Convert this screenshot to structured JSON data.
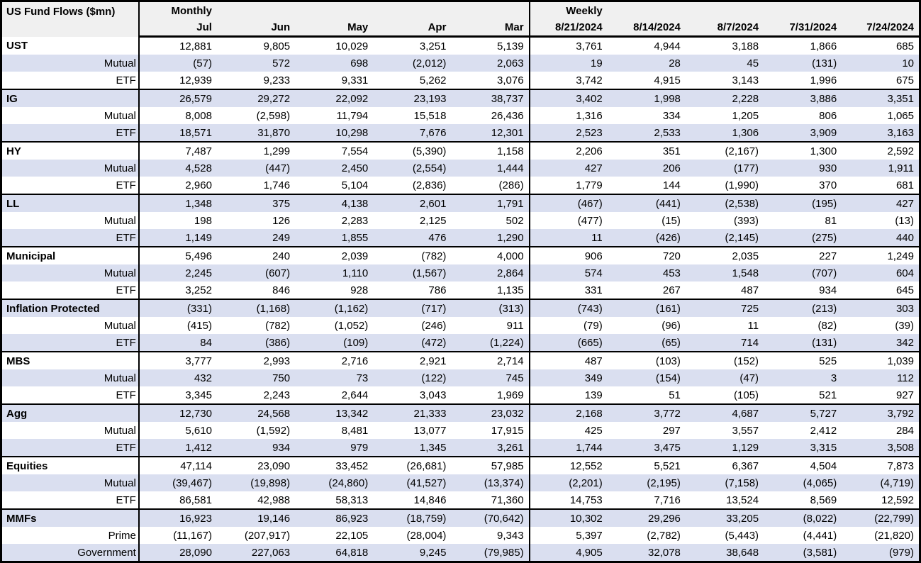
{
  "table": {
    "title": "US Fund Flows ($mn)",
    "monthly_label": "Monthly",
    "weekly_label": "Weekly",
    "monthly_columns": [
      "Jul",
      "Jun",
      "May",
      "Apr",
      "Mar"
    ],
    "weekly_columns": [
      "8/21/2024",
      "8/14/2024",
      "8/7/2024",
      "7/31/2024",
      "7/24/2024"
    ],
    "colors": {
      "band": "#dadff0",
      "header_bg": "#f0f0f0",
      "border": "#000000"
    },
    "groups": [
      {
        "name": "UST",
        "rows": [
          {
            "label": "UST",
            "category": true,
            "monthly": [
              "12,881",
              "9,805",
              "10,029",
              "3,251",
              "5,139"
            ],
            "weekly": [
              "3,761",
              "4,944",
              "3,188",
              "1,866",
              "685"
            ]
          },
          {
            "label": "Mutual",
            "category": false,
            "monthly": [
              "(57)",
              "572",
              "698",
              "(2,012)",
              "2,063"
            ],
            "weekly": [
              "19",
              "28",
              "45",
              "(131)",
              "10"
            ]
          },
          {
            "label": "ETF",
            "category": false,
            "monthly": [
              "12,939",
              "9,233",
              "9,331",
              "5,262",
              "3,076"
            ],
            "weekly": [
              "3,742",
              "4,915",
              "3,143",
              "1,996",
              "675"
            ]
          }
        ]
      },
      {
        "name": "IG",
        "rows": [
          {
            "label": "IG",
            "category": true,
            "monthly": [
              "26,579",
              "29,272",
              "22,092",
              "23,193",
              "38,737"
            ],
            "weekly": [
              "3,402",
              "1,998",
              "2,228",
              "3,886",
              "3,351"
            ]
          },
          {
            "label": "Mutual",
            "category": false,
            "monthly": [
              "8,008",
              "(2,598)",
              "11,794",
              "15,518",
              "26,436"
            ],
            "weekly": [
              "1,316",
              "334",
              "1,205",
              "806",
              "1,065"
            ]
          },
          {
            "label": "ETF",
            "category": false,
            "monthly": [
              "18,571",
              "31,870",
              "10,298",
              "7,676",
              "12,301"
            ],
            "weekly": [
              "2,523",
              "2,533",
              "1,306",
              "3,909",
              "3,163"
            ]
          }
        ]
      },
      {
        "name": "HY",
        "rows": [
          {
            "label": "HY",
            "category": true,
            "monthly": [
              "7,487",
              "1,299",
              "7,554",
              "(5,390)",
              "1,158"
            ],
            "weekly": [
              "2,206",
              "351",
              "(2,167)",
              "1,300",
              "2,592"
            ]
          },
          {
            "label": "Mutual",
            "category": false,
            "monthly": [
              "4,528",
              "(447)",
              "2,450",
              "(2,554)",
              "1,444"
            ],
            "weekly": [
              "427",
              "206",
              "(177)",
              "930",
              "1,911"
            ]
          },
          {
            "label": "ETF",
            "category": false,
            "monthly": [
              "2,960",
              "1,746",
              "5,104",
              "(2,836)",
              "(286)"
            ],
            "weekly": [
              "1,779",
              "144",
              "(1,990)",
              "370",
              "681"
            ]
          }
        ]
      },
      {
        "name": "LL",
        "rows": [
          {
            "label": "LL",
            "category": true,
            "monthly": [
              "1,348",
              "375",
              "4,138",
              "2,601",
              "1,791"
            ],
            "weekly": [
              "(467)",
              "(441)",
              "(2,538)",
              "(195)",
              "427"
            ]
          },
          {
            "label": "Mutual",
            "category": false,
            "monthly": [
              "198",
              "126",
              "2,283",
              "2,125",
              "502"
            ],
            "weekly": [
              "(477)",
              "(15)",
              "(393)",
              "81",
              "(13)"
            ]
          },
          {
            "label": "ETF",
            "category": false,
            "monthly": [
              "1,149",
              "249",
              "1,855",
              "476",
              "1,290"
            ],
            "weekly": [
              "11",
              "(426)",
              "(2,145)",
              "(275)",
              "440"
            ]
          }
        ]
      },
      {
        "name": "Municipal",
        "rows": [
          {
            "label": "Municipal",
            "category": true,
            "monthly": [
              "5,496",
              "240",
              "2,039",
              "(782)",
              "4,000"
            ],
            "weekly": [
              "906",
              "720",
              "2,035",
              "227",
              "1,249"
            ]
          },
          {
            "label": "Mutual",
            "category": false,
            "monthly": [
              "2,245",
              "(607)",
              "1,110",
              "(1,567)",
              "2,864"
            ],
            "weekly": [
              "574",
              "453",
              "1,548",
              "(707)",
              "604"
            ]
          },
          {
            "label": "ETF",
            "category": false,
            "monthly": [
              "3,252",
              "846",
              "928",
              "786",
              "1,135"
            ],
            "weekly": [
              "331",
              "267",
              "487",
              "934",
              "645"
            ]
          }
        ]
      },
      {
        "name": "Inflation Protected",
        "rows": [
          {
            "label": "Inflation Protected",
            "category": true,
            "monthly": [
              "(331)",
              "(1,168)",
              "(1,162)",
              "(717)",
              "(313)"
            ],
            "weekly": [
              "(743)",
              "(161)",
              "725",
              "(213)",
              "303"
            ]
          },
          {
            "label": "Mutual",
            "category": false,
            "monthly": [
              "(415)",
              "(782)",
              "(1,052)",
              "(246)",
              "911"
            ],
            "weekly": [
              "(79)",
              "(96)",
              "11",
              "(82)",
              "(39)"
            ]
          },
          {
            "label": "ETF",
            "category": false,
            "monthly": [
              "84",
              "(386)",
              "(109)",
              "(472)",
              "(1,224)"
            ],
            "weekly": [
              "(665)",
              "(65)",
              "714",
              "(131)",
              "342"
            ]
          }
        ]
      },
      {
        "name": "MBS",
        "rows": [
          {
            "label": "MBS",
            "category": true,
            "monthly": [
              "3,777",
              "2,993",
              "2,716",
              "2,921",
              "2,714"
            ],
            "weekly": [
              "487",
              "(103)",
              "(152)",
              "525",
              "1,039"
            ]
          },
          {
            "label": "Mutual",
            "category": false,
            "monthly": [
              "432",
              "750",
              "73",
              "(122)",
              "745"
            ],
            "weekly": [
              "349",
              "(154)",
              "(47)",
              "3",
              "112"
            ]
          },
          {
            "label": "ETF",
            "category": false,
            "monthly": [
              "3,345",
              "2,243",
              "2,644",
              "3,043",
              "1,969"
            ],
            "weekly": [
              "139",
              "51",
              "(105)",
              "521",
              "927"
            ]
          }
        ]
      },
      {
        "name": "Agg",
        "rows": [
          {
            "label": "Agg",
            "category": true,
            "monthly": [
              "12,730",
              "24,568",
              "13,342",
              "21,333",
              "23,032"
            ],
            "weekly": [
              "2,168",
              "3,772",
              "4,687",
              "5,727",
              "3,792"
            ]
          },
          {
            "label": "Mutual",
            "category": false,
            "monthly": [
              "5,610",
              "(1,592)",
              "8,481",
              "13,077",
              "17,915"
            ],
            "weekly": [
              "425",
              "297",
              "3,557",
              "2,412",
              "284"
            ]
          },
          {
            "label": "ETF",
            "category": false,
            "monthly": [
              "1,412",
              "934",
              "979",
              "1,345",
              "3,261"
            ],
            "weekly": [
              "1,744",
              "3,475",
              "1,129",
              "3,315",
              "3,508"
            ]
          }
        ]
      },
      {
        "name": "Equities",
        "rows": [
          {
            "label": "Equities",
            "category": true,
            "monthly": [
              "47,114",
              "23,090",
              "33,452",
              "(26,681)",
              "57,985"
            ],
            "weekly": [
              "12,552",
              "5,521",
              "6,367",
              "4,504",
              "7,873"
            ]
          },
          {
            "label": "Mutual",
            "category": false,
            "monthly": [
              "(39,467)",
              "(19,898)",
              "(24,860)",
              "(41,527)",
              "(13,374)"
            ],
            "weekly": [
              "(2,201)",
              "(2,195)",
              "(7,158)",
              "(4,065)",
              "(4,719)"
            ]
          },
          {
            "label": "ETF",
            "category": false,
            "monthly": [
              "86,581",
              "42,988",
              "58,313",
              "14,846",
              "71,360"
            ],
            "weekly": [
              "14,753",
              "7,716",
              "13,524",
              "8,569",
              "12,592"
            ]
          }
        ]
      },
      {
        "name": "MMFs",
        "rows": [
          {
            "label": "MMFs",
            "category": true,
            "monthly": [
              "16,923",
              "19,146",
              "86,923",
              "(18,759)",
              "(70,642)"
            ],
            "weekly": [
              "10,302",
              "29,296",
              "33,205",
              "(8,022)",
              "(22,799)"
            ]
          },
          {
            "label": "Prime",
            "category": false,
            "monthly": [
              "(11,167)",
              "(207,917)",
              "22,105",
              "(28,004)",
              "9,343"
            ],
            "weekly": [
              "5,397",
              "(2,782)",
              "(5,443)",
              "(4,441)",
              "(21,820)"
            ]
          },
          {
            "label": "Government",
            "category": false,
            "monthly": [
              "28,090",
              "227,063",
              "64,818",
              "9,245",
              "(79,985)"
            ],
            "weekly": [
              "4,905",
              "32,078",
              "38,648",
              "(3,581)",
              "(979)"
            ]
          }
        ]
      }
    ]
  }
}
